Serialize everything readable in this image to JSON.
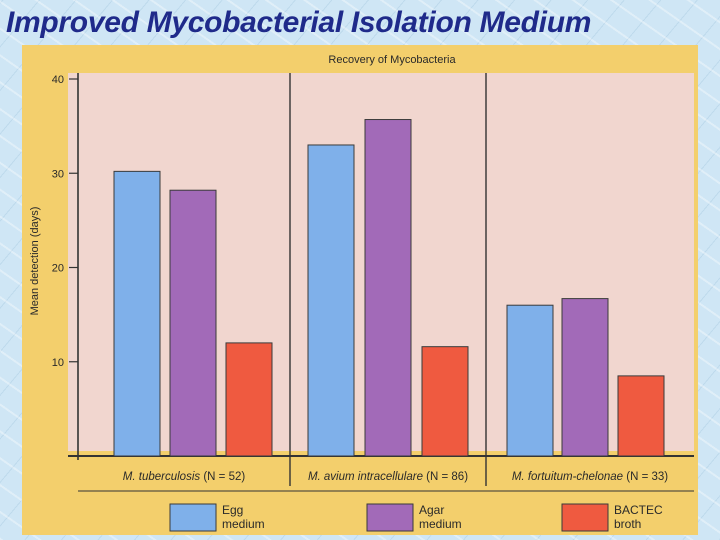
{
  "slide": {
    "title": "Improved Mycobacterial Isolation Medium"
  },
  "chart_data": {
    "type": "bar",
    "title": "Recovery of Mycobacteria",
    "xlabel": "",
    "ylabel": "Mean detection (days)",
    "ylim": [
      0,
      40
    ],
    "yticks": [
      10,
      20,
      30,
      40
    ],
    "grid": false,
    "legend_position": "bottom",
    "categories": [
      {
        "species": "M. tuberculosis",
        "count": "(N = 52)"
      },
      {
        "species": "M. avium intracellulare",
        "count": "(N = 86)"
      },
      {
        "species": "M. fortuitum-chelonae",
        "count": "(N = 33)"
      }
    ],
    "series": [
      {
        "name": "Egg medium",
        "legend_lines": [
          "Egg",
          "medium"
        ],
        "color": "#7fb0ea",
        "values": [
          30.2,
          33.0,
          16.0
        ]
      },
      {
        "name": "Agar medium",
        "legend_lines": [
          "Agar",
          "medium"
        ],
        "color": "#a26ab8",
        "values": [
          28.2,
          35.7,
          16.7
        ]
      },
      {
        "name": "BACTEC broth",
        "legend_lines": [
          "BACTEC",
          "broth"
        ],
        "color": "#ef5a40",
        "values": [
          12.0,
          11.6,
          8.5
        ]
      }
    ]
  }
}
